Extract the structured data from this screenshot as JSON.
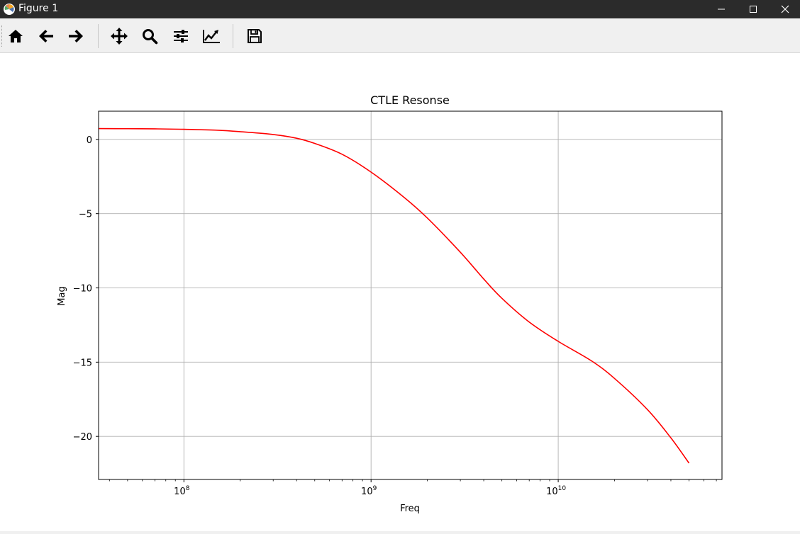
{
  "window": {
    "title": "Figure 1"
  },
  "toolbar": {
    "tools": [
      {
        "name": "home",
        "icon": "home-icon"
      },
      {
        "name": "back",
        "icon": "arrow-left-icon"
      },
      {
        "name": "forward",
        "icon": "arrow-right-icon"
      },
      {
        "name": "pan",
        "icon": "move-icon"
      },
      {
        "name": "zoom",
        "icon": "magnifier-icon"
      },
      {
        "name": "subplots",
        "icon": "sliders-icon"
      },
      {
        "name": "customize",
        "icon": "line-chart-icon"
      },
      {
        "name": "save",
        "icon": "floppy-disk-icon"
      }
    ]
  },
  "chart_data": {
    "type": "line",
    "title": "CTLE Resonse",
    "xlabel": "Freq",
    "ylabel": "Mag",
    "xscale": "log",
    "xlim": [
      35000000,
      75000000000
    ],
    "ylim": [
      -22.9,
      1.9
    ],
    "xticks": [
      {
        "value": 100000000,
        "base": "10",
        "exp": "8"
      },
      {
        "value": 1000000000,
        "base": "10",
        "exp": "9"
      },
      {
        "value": 10000000000,
        "base": "10",
        "exp": "10"
      }
    ],
    "yticks": [
      {
        "value": 0,
        "label": "0"
      },
      {
        "value": -5,
        "label": "−5"
      },
      {
        "value": -10,
        "label": "−10"
      },
      {
        "value": -15,
        "label": "−15"
      },
      {
        "value": -20,
        "label": "−20"
      }
    ],
    "grid": true,
    "series": [
      {
        "color": "#ff0000",
        "x": [
          35000000,
          50000000,
          70000000,
          100000000,
          150000000,
          200000000,
          300000000,
          400000000,
          500000000,
          700000000,
          1000000000,
          1500000000,
          2000000000,
          3000000000,
          4000000000,
          5000000000,
          7000000000,
          10000000000,
          15000000000,
          20000000000,
          30000000000,
          40000000000,
          50000000000
        ],
        "y": [
          0.73,
          0.72,
          0.71,
          0.68,
          0.62,
          0.52,
          0.33,
          0.08,
          -0.27,
          -1.0,
          -2.2,
          -3.9,
          -5.3,
          -7.6,
          -9.4,
          -10.7,
          -12.3,
          -13.6,
          -14.9,
          -16.1,
          -18.2,
          -20.1,
          -21.8
        ]
      }
    ]
  }
}
